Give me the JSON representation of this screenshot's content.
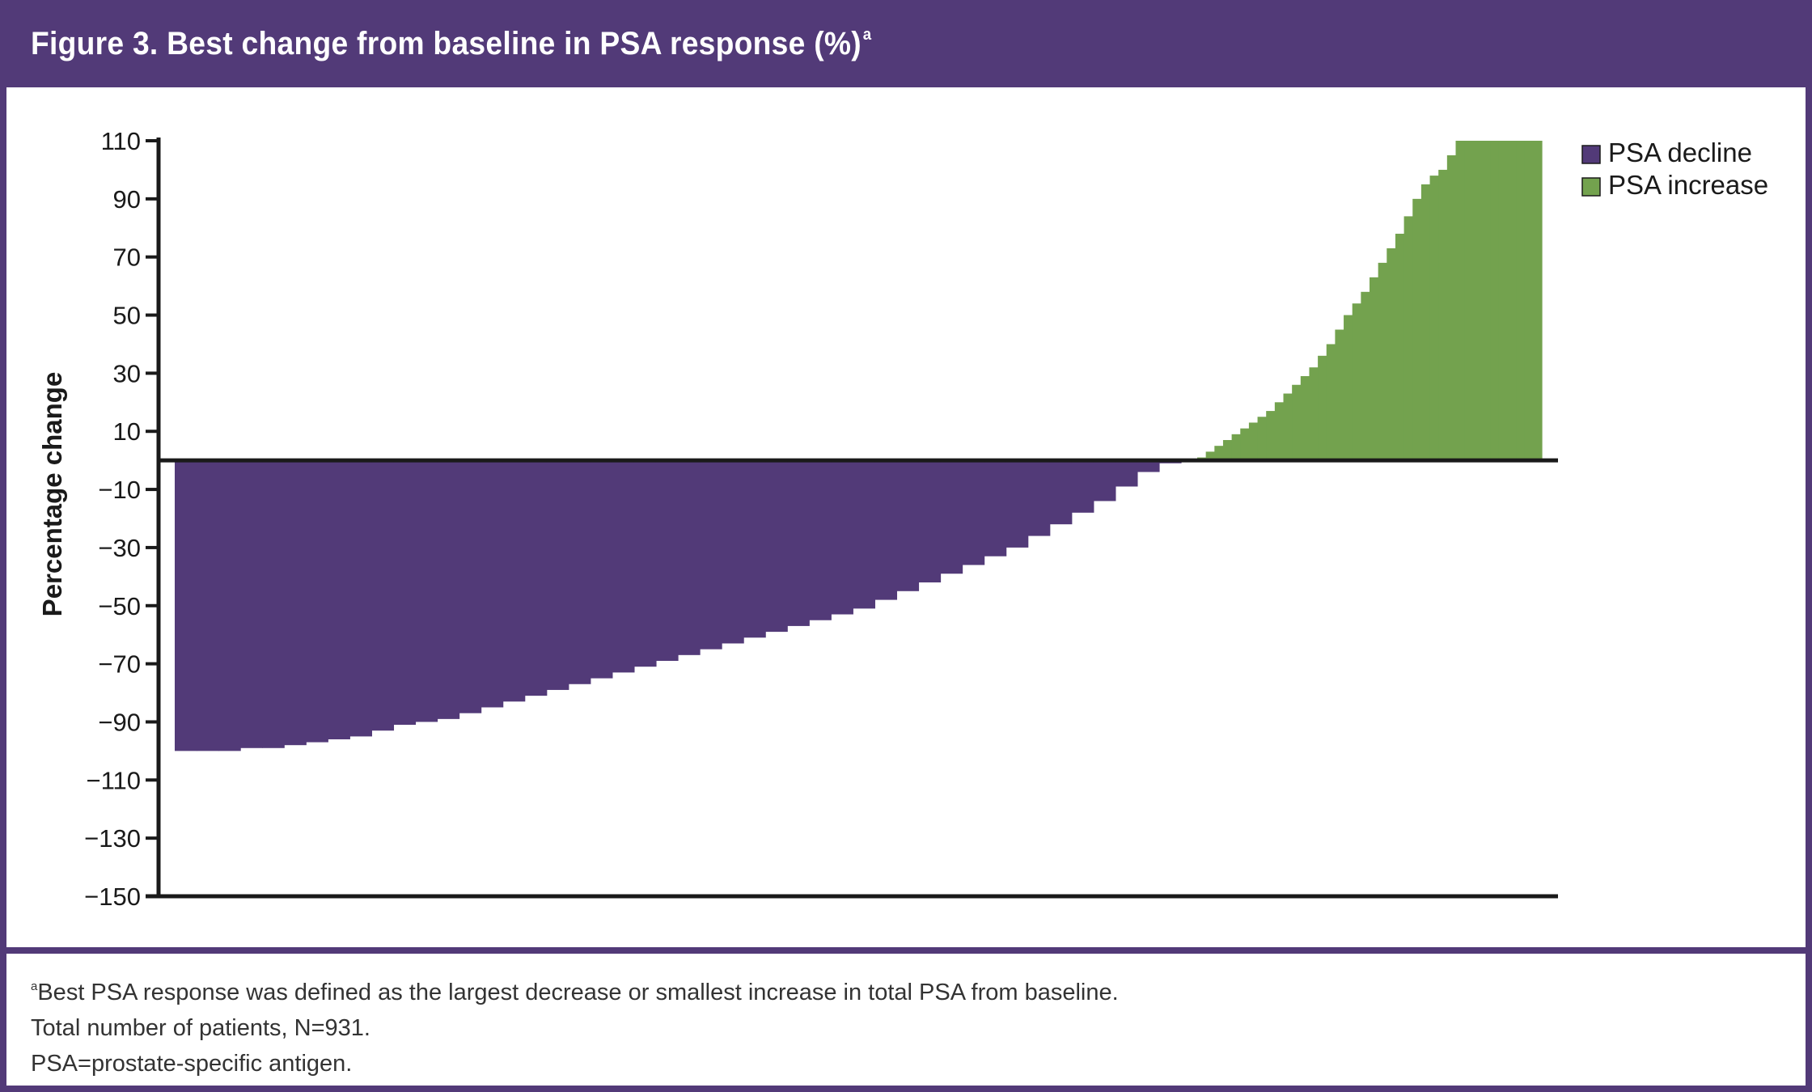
{
  "figure": {
    "title": "Figure 3. Best change from baseline in PSA response (%)",
    "title_sup": "a",
    "frame_color": "#523a78"
  },
  "chart_data": {
    "type": "bar",
    "ylabel": "Percentage change",
    "xlabel": "",
    "ylim": [
      -150,
      110
    ],
    "yticks": [
      110,
      90,
      70,
      50,
      30,
      10,
      -10,
      -30,
      -50,
      -70,
      -90,
      -110,
      -130,
      -150
    ],
    "ytick_labels": [
      "110",
      "90",
      "70",
      "50",
      "30",
      "10",
      "−10",
      "−30",
      "−50",
      "−70",
      "−90",
      "−110",
      "−130",
      "−150"
    ],
    "n_patients": 931,
    "grid": false,
    "legend_position": "top-right",
    "series": [
      {
        "name": "PSA decline",
        "color": "#523a78",
        "values": [
          -100,
          -100,
          -100,
          -99,
          -99,
          -98,
          -97,
          -96,
          -95,
          -93,
          -91,
          -90,
          -89,
          -87,
          -85,
          -83,
          -81,
          -79,
          -77,
          -75,
          -73,
          -71,
          -69,
          -67,
          -65,
          -63,
          -61,
          -59,
          -57,
          -55,
          -53,
          -51,
          -48,
          -45,
          -42,
          -39,
          -36,
          -33,
          -30,
          -26,
          -22,
          -18,
          -14,
          -9,
          -4,
          -1
        ]
      },
      {
        "name": "PSA increase",
        "color": "#73a24e",
        "values": [
          1,
          3,
          5,
          7,
          9,
          11,
          13,
          15,
          17,
          20,
          23,
          26,
          29,
          32,
          36,
          40,
          45,
          50,
          54,
          58,
          63,
          68,
          73,
          78,
          84,
          90,
          95,
          98,
          100,
          105,
          110,
          110,
          110,
          110,
          110,
          110,
          110,
          110,
          110,
          110
        ]
      }
    ]
  },
  "footnotes": {
    "line1_sup": "a",
    "line1": "Best PSA response was defined as the largest decrease or smallest increase in total PSA from baseline.",
    "line2": "Total number of patients, N=931.",
    "line3": "PSA=prostate-specific antigen."
  }
}
